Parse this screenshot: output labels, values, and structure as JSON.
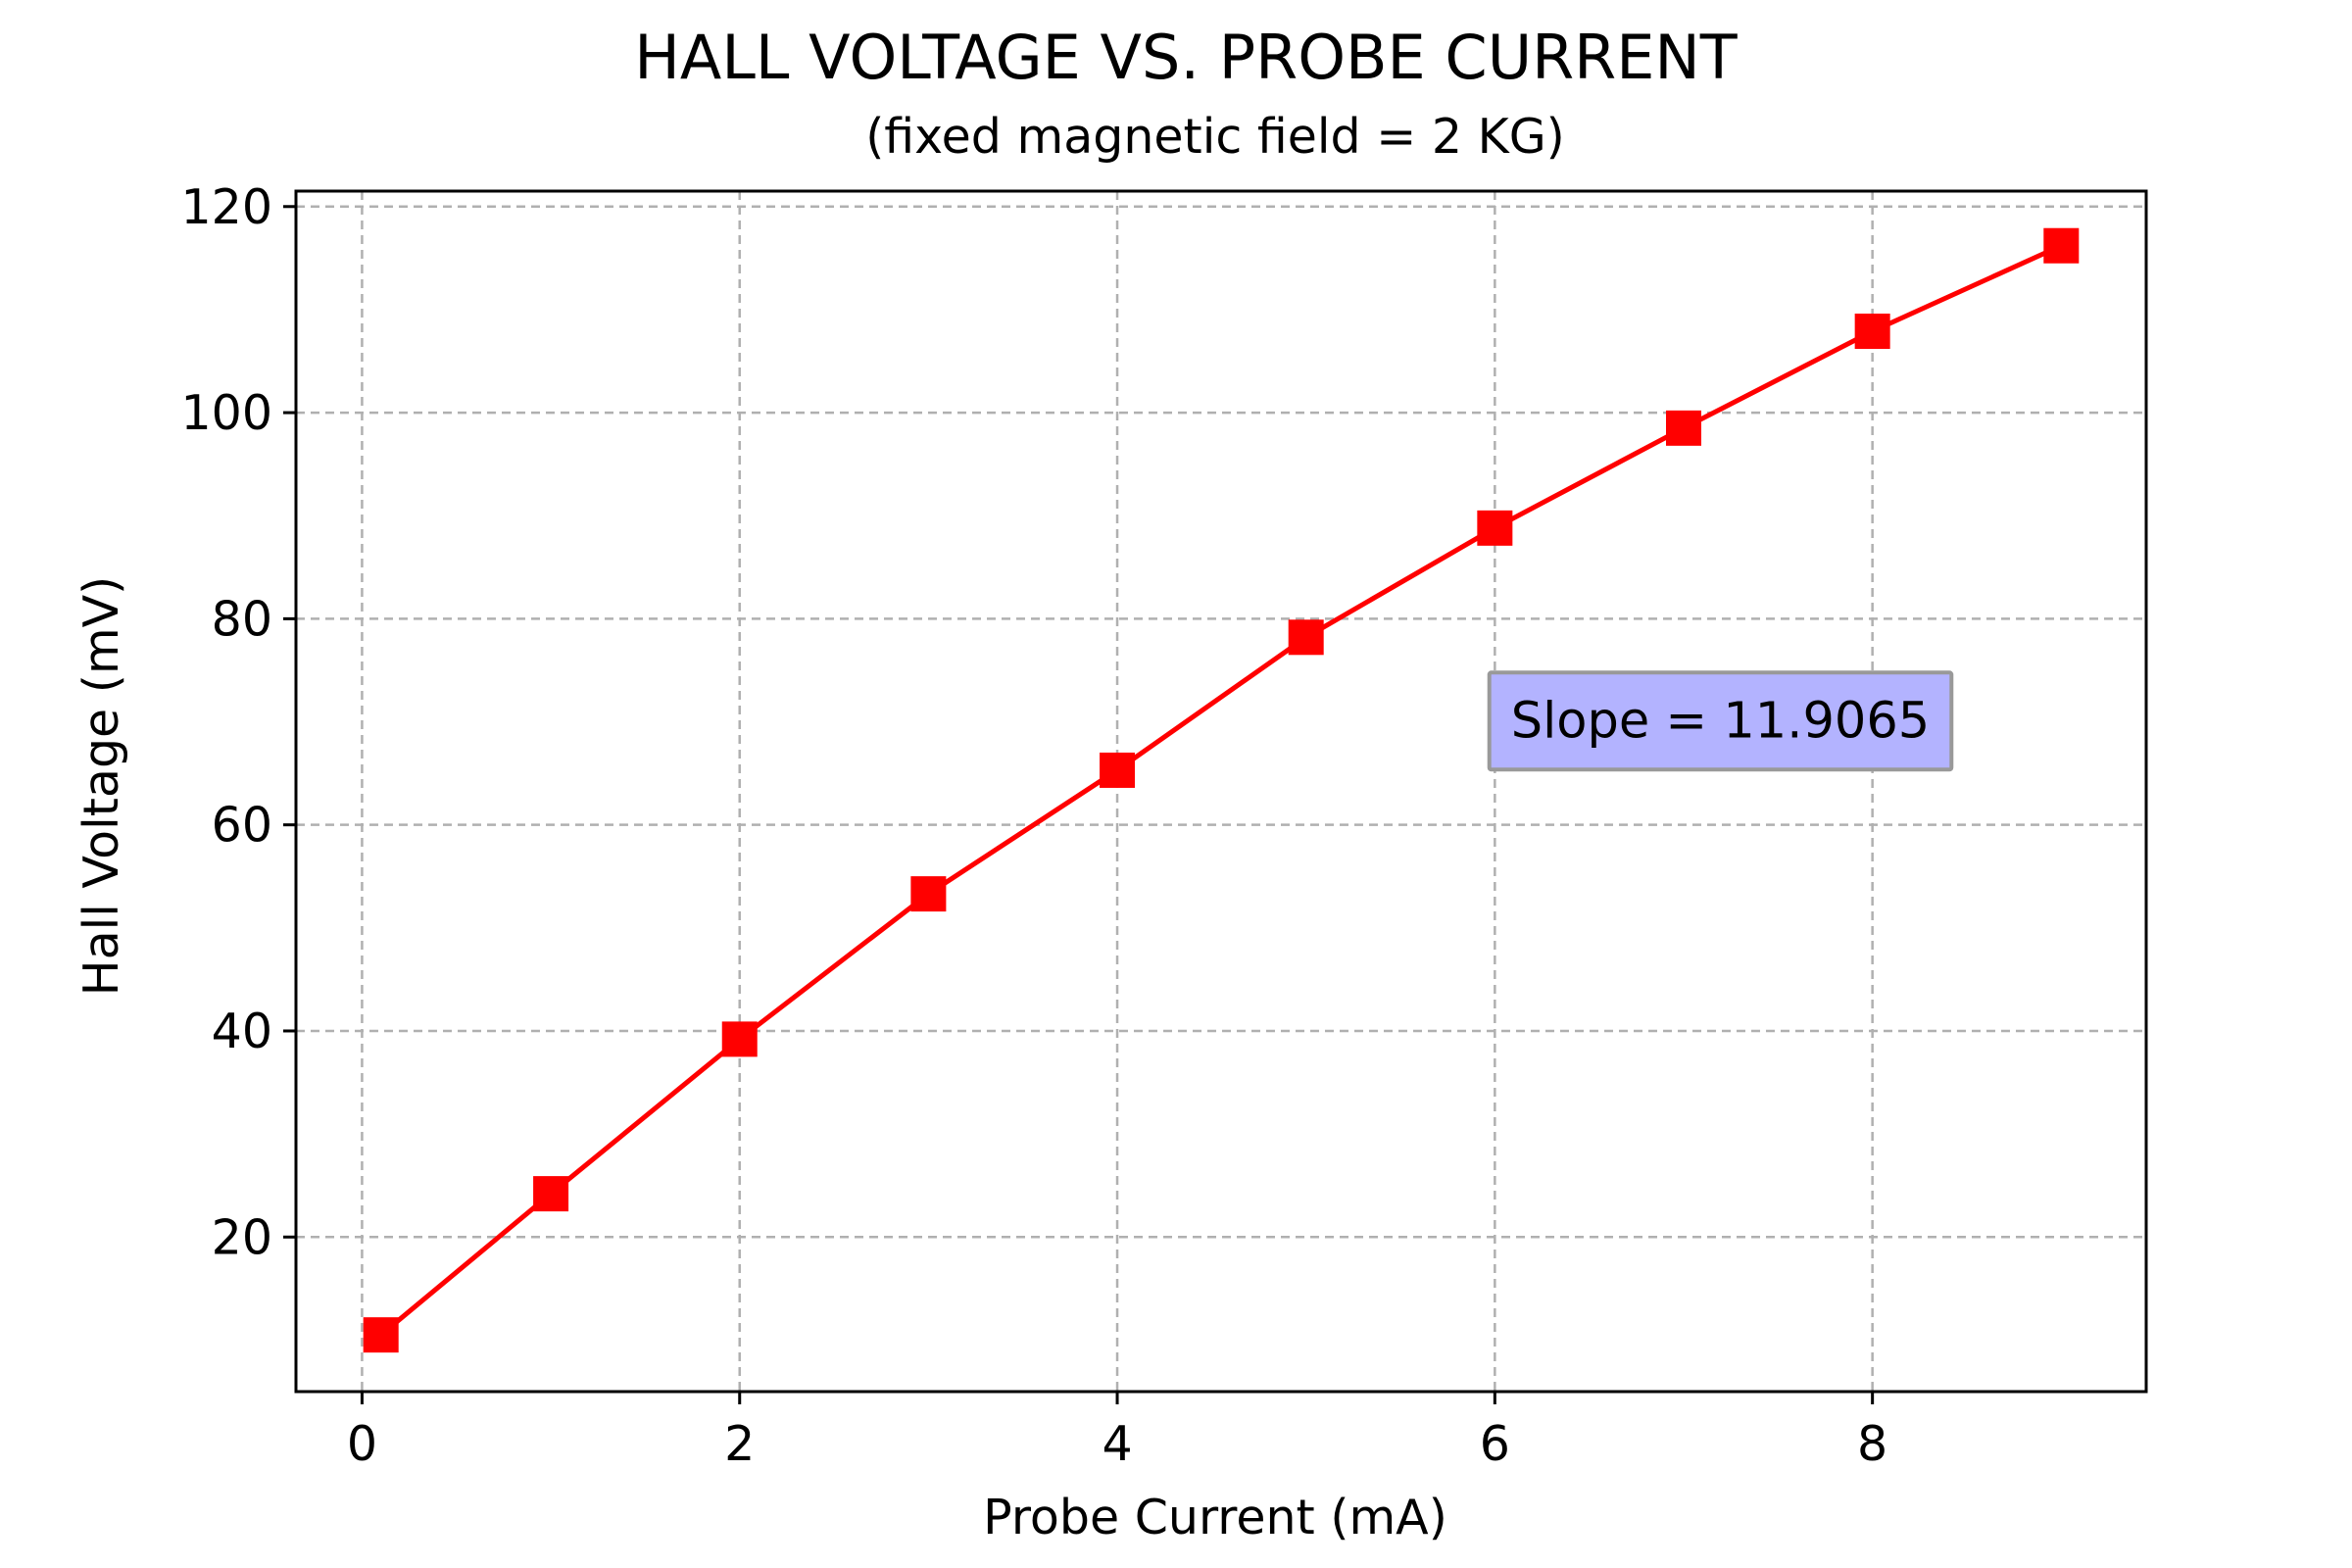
{
  "chart_data": {
    "type": "line",
    "title": "HALL VOLTAGE VS. PROBE CURRENT",
    "subtitle": "(fixed magnetic field = 2 KG)",
    "xlabel": "Probe Current (mA)",
    "ylabel": "Hall Voltage (mV)",
    "xlim": [
      -0.35,
      9.45
    ],
    "ylim": [
      5,
      121.5
    ],
    "x_ticks": [
      0,
      2,
      4,
      6,
      8
    ],
    "y_ticks": [
      20,
      40,
      60,
      80,
      100,
      120
    ],
    "grid": true,
    "series": [
      {
        "x": [
          0.1,
          1,
          2,
          3,
          4,
          5,
          6,
          7,
          8,
          9
        ],
        "values": [
          10.5,
          24.2,
          39.2,
          53.3,
          65.3,
          78.2,
          88.8,
          98.5,
          107.9,
          116.2
        ],
        "color": "#ff0000",
        "marker": "square"
      }
    ],
    "annotation": {
      "text": "Slope = 11.9065",
      "x": 5.95,
      "y": 68.5,
      "box_color": "#b3b3ff",
      "border_color": "#999999"
    }
  }
}
